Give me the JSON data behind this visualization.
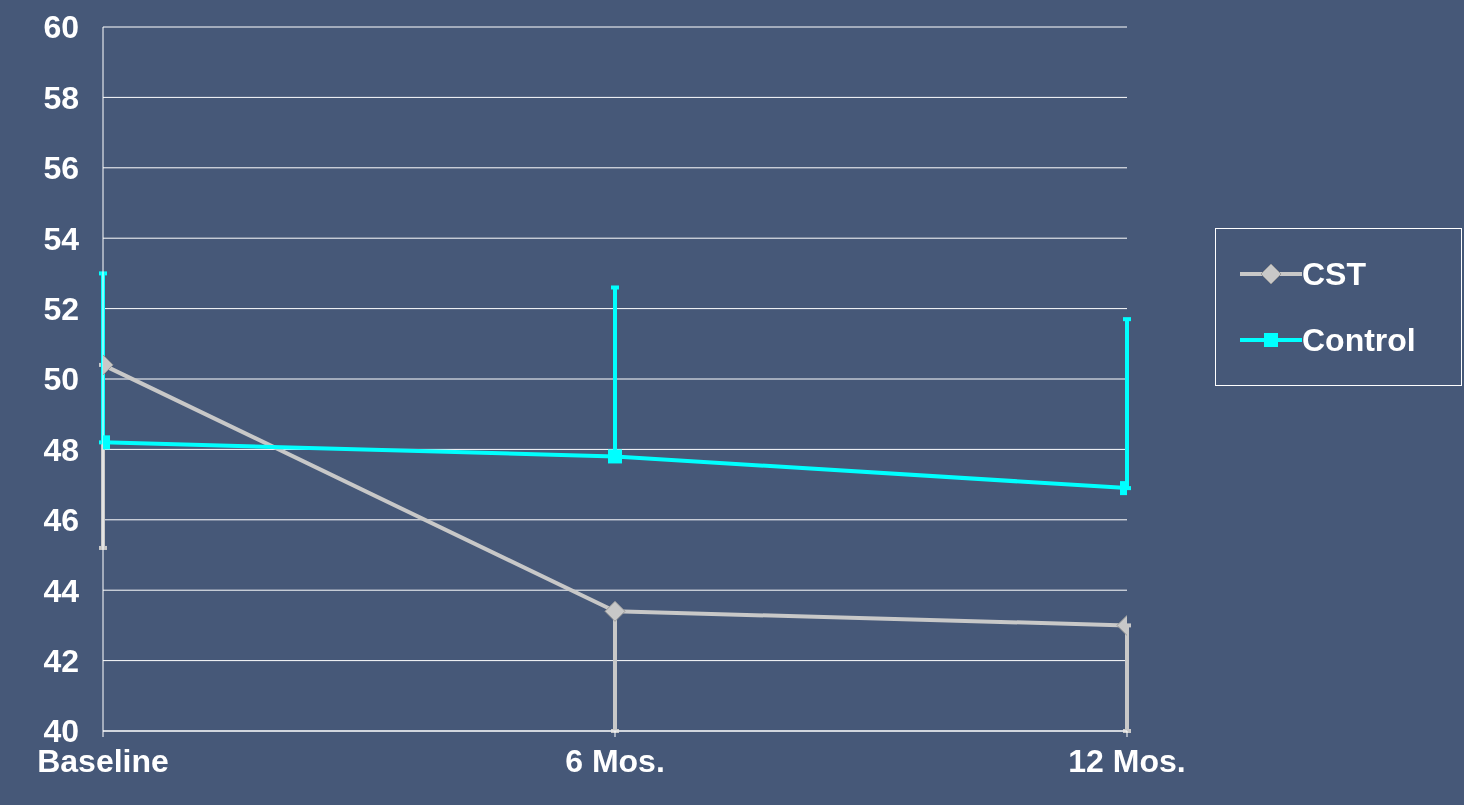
{
  "chart_data": {
    "type": "line",
    "categories": [
      "Baseline",
      "6 Mos.",
      "12 Mos."
    ],
    "series": [
      {
        "name": "CST",
        "color": "#c8c8c8",
        "marker": "diamond",
        "values": [
          50.4,
          43.4,
          43.0
        ],
        "errors": [
          [
            45.2,
            50.4
          ],
          [
            40,
            43.4
          ],
          [
            40,
            43.0
          ]
        ]
      },
      {
        "name": "Control",
        "color": "#00ffff",
        "marker": "square",
        "values": [
          48.2,
          47.8,
          46.9
        ],
        "errors": [
          [
            48.2,
            53.0
          ],
          [
            47.8,
            52.6
          ],
          [
            46.9,
            51.7
          ]
        ]
      }
    ],
    "ylim": [
      40,
      60
    ],
    "yticks": [
      40,
      42,
      44,
      46,
      48,
      50,
      52,
      54,
      56,
      58,
      60
    ],
    "grid": "y",
    "legend": "right",
    "line_style": "solid"
  }
}
